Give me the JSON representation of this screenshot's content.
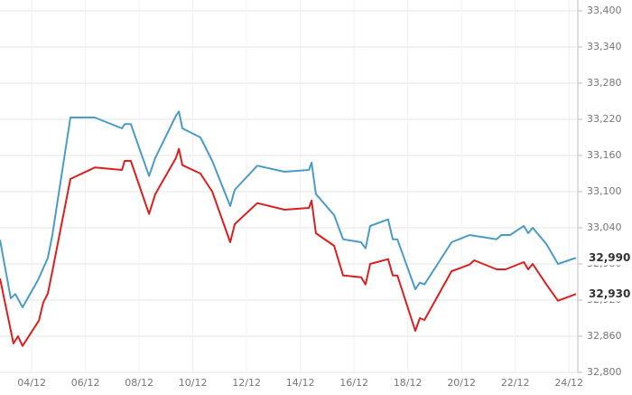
{
  "chart_data": {
    "type": "line",
    "xlim": [
      2.82,
      24.33
    ],
    "xticks": [
      {
        "value": 4,
        "label": "04/12"
      },
      {
        "value": 6,
        "label": "06/12"
      },
      {
        "value": 8,
        "label": "08/12"
      },
      {
        "value": 10,
        "label": "10/12"
      },
      {
        "value": 12,
        "label": "12/12"
      },
      {
        "value": 14,
        "label": "14/12"
      },
      {
        "value": 16,
        "label": "16/12"
      },
      {
        "value": 18,
        "label": "18/12"
      },
      {
        "value": 20,
        "label": "20/12"
      },
      {
        "value": 22,
        "label": "22/12"
      },
      {
        "value": 24,
        "label": "24/12"
      }
    ],
    "ylim": [
      32800,
      33400
    ],
    "yticks": [
      {
        "value": 32800,
        "label": "32,800"
      },
      {
        "value": 32860,
        "label": "32,860"
      },
      {
        "value": 32920,
        "label": "32,920"
      },
      {
        "value": 32980,
        "label": "32,980"
      },
      {
        "value": 33040,
        "label": "33,040"
      },
      {
        "value": 33100,
        "label": "33,100"
      },
      {
        "value": 33160,
        "label": "33,160"
      },
      {
        "value": 33220,
        "label": "33,220"
      },
      {
        "value": 33280,
        "label": "33,280"
      },
      {
        "value": 33340,
        "label": "33,340"
      },
      {
        "value": 33400,
        "label": "33,400"
      }
    ],
    "grid": true,
    "series": [
      {
        "color": "#4a9cc6",
        "last_label": "32,990",
        "x": [
          2.82,
          3.22,
          3.39,
          3.66,
          4.23,
          4.6,
          4.77,
          5.44,
          6.35,
          7.36,
          7.46,
          7.69,
          8.37,
          8.6,
          9.37,
          9.48,
          9.61,
          10.28,
          10.72,
          11.39,
          11.56,
          12.4,
          13.41,
          14.32,
          14.42,
          14.58,
          15.26,
          15.59,
          16.26,
          16.43,
          16.6,
          17.27,
          17.44,
          17.61,
          18.28,
          18.45,
          18.62,
          19.63,
          20.3,
          21.31,
          21.48,
          21.81,
          22.32,
          22.48,
          22.65,
          23.16,
          23.59,
          24.26
        ],
        "values": [
          33020,
          32923,
          32930,
          32908,
          32953,
          32990,
          33028,
          33223,
          33223,
          33205,
          33212,
          33212,
          33126,
          33156,
          33226,
          33233,
          33205,
          33190,
          33151,
          33076,
          33103,
          33143,
          33133,
          33136,
          33148,
          33096,
          33061,
          33021,
          33016,
          33006,
          33043,
          33054,
          33021,
          33021,
          32938,
          32949,
          32946,
          33016,
          33028,
          33021,
          33028,
          33028,
          33043,
          33031,
          33040,
          33013,
          32980,
          32990
        ]
      },
      {
        "color": "#d92020",
        "last_label": "32,930",
        "x": [
          2.82,
          3.32,
          3.49,
          3.66,
          4.27,
          4.43,
          4.6,
          4.77,
          5.44,
          6.35,
          7.36,
          7.46,
          7.69,
          8.37,
          8.6,
          9.37,
          9.48,
          9.61,
          10.28,
          10.72,
          11.39,
          11.56,
          12.4,
          13.41,
          14.32,
          14.42,
          14.58,
          15.26,
          15.59,
          16.26,
          16.43,
          16.6,
          17.27,
          17.44,
          17.61,
          18.28,
          18.45,
          18.62,
          19.63,
          20.3,
          20.47,
          21.31,
          21.64,
          22.32,
          22.48,
          22.65,
          23.16,
          23.59,
          24.26
        ],
        "values": [
          32956,
          32848,
          32860,
          32844,
          32886,
          32916,
          32931,
          32968,
          33121,
          33140,
          33136,
          33151,
          33151,
          33063,
          33096,
          33156,
          33171,
          33144,
          33130,
          33100,
          33016,
          33046,
          33081,
          33070,
          33073,
          33085,
          33031,
          33010,
          32961,
          32958,
          32946,
          32980,
          32988,
          32961,
          32961,
          32869,
          32890,
          32887,
          32968,
          32979,
          32986,
          32971,
          32971,
          32983,
          32971,
          32980,
          32946,
          32919,
          32930
        ]
      }
    ]
  }
}
